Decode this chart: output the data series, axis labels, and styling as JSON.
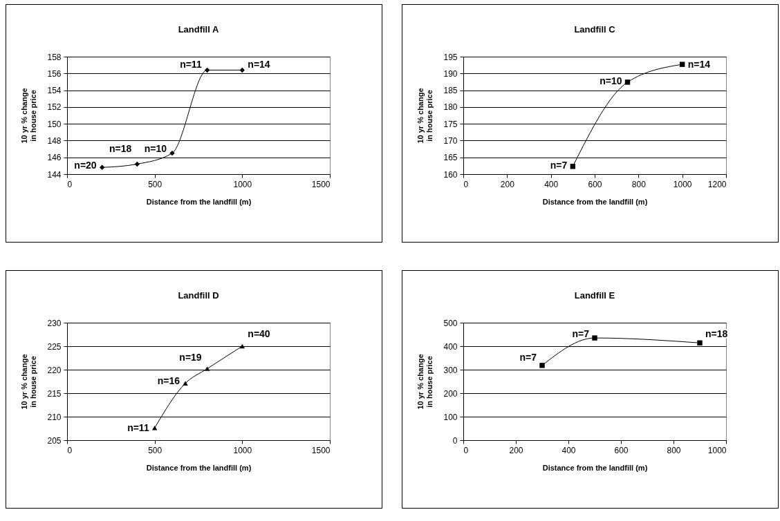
{
  "chart_data": [
    {
      "type": "line",
      "title": "Landfill A",
      "xlabel": "Distance from the landfill (m)",
      "ylabel": "10 yr % change in house price",
      "x": [
        200,
        400,
        600,
        800,
        1000
      ],
      "values": [
        144.8,
        145.2,
        146.5,
        156.4,
        156.4
      ],
      "color": "#000000",
      "marker": "diamond",
      "xlim": [
        0,
        1500
      ],
      "xticks": [
        0,
        500,
        1000,
        1500
      ],
      "ylim": [
        144,
        158
      ],
      "yticks": [
        144,
        146,
        148,
        150,
        152,
        154,
        156,
        158
      ],
      "grid": "y",
      "annotations": [
        {
          "text": "n=20",
          "x": 200,
          "y": 144.8
        },
        {
          "text": "n=18",
          "x": 400,
          "y": 145.2
        },
        {
          "text": "n=10",
          "x": 600,
          "y": 146.5
        },
        {
          "text": "n=11",
          "x": 800,
          "y": 156.4
        },
        {
          "text": "n=14",
          "x": 1000,
          "y": 156.4
        }
      ]
    },
    {
      "type": "line",
      "title": "Landfill C",
      "xlabel": "Distance from the landfill (m)",
      "ylabel": "10 yr % change in house price",
      "x": [
        500,
        750,
        1000
      ],
      "values": [
        162.3,
        187.4,
        192.7
      ],
      "color": "#000000",
      "marker": "square",
      "xlim": [
        0,
        1200
      ],
      "xticks": [
        0,
        200,
        400,
        600,
        800,
        1000,
        1200
      ],
      "ylim": [
        160,
        195
      ],
      "yticks": [
        160,
        165,
        170,
        175,
        180,
        185,
        190,
        195
      ],
      "grid": "y",
      "annotations": [
        {
          "text": "n=7",
          "x": 500,
          "y": 162.3
        },
        {
          "text": "n=10",
          "x": 750,
          "y": 187.4
        },
        {
          "text": "n=14",
          "x": 1000,
          "y": 192.7
        }
      ]
    },
    {
      "type": "line",
      "title": "Landfill D",
      "xlabel": "Distance from the landfill (m)",
      "ylabel": "10 yr % change in house price",
      "x": [
        500,
        675,
        800,
        1000
      ],
      "values": [
        207.6,
        217.1,
        220.2,
        225
      ],
      "color": "#000000",
      "marker": "triangle",
      "xlim": [
        0,
        1500
      ],
      "xticks": [
        0,
        500,
        1000,
        1500
      ],
      "ylim": [
        205,
        230
      ],
      "yticks": [
        205,
        210,
        215,
        220,
        225,
        230
      ],
      "grid": "y",
      "annotations": [
        {
          "text": "n=11",
          "x": 500,
          "y": 207.6
        },
        {
          "text": "n=16",
          "x": 675,
          "y": 217.1
        },
        {
          "text": "n=19",
          "x": 800,
          "y": 220.2
        },
        {
          "text": "n=40",
          "x": 1000,
          "y": 225
        }
      ]
    },
    {
      "type": "line",
      "title": "Landfill E",
      "xlabel": "Distance from the landfill (m)",
      "ylabel": "10 yr % change in house price",
      "x": [
        300,
        500,
        900
      ],
      "values": [
        318,
        435,
        414
      ],
      "color": "#000000",
      "marker": "square",
      "xlim": [
        0,
        1000
      ],
      "xticks": [
        0,
        200,
        400,
        600,
        800,
        1000
      ],
      "ylim": [
        0,
        500
      ],
      "yticks": [
        0,
        100,
        200,
        300,
        400,
        500
      ],
      "grid": "y",
      "annotations": [
        {
          "text": "n=7",
          "x": 300,
          "y": 318
        },
        {
          "text": "n=7",
          "x": 500,
          "y": 435
        },
        {
          "text": "n=18",
          "x": 900,
          "y": 414
        }
      ]
    }
  ]
}
